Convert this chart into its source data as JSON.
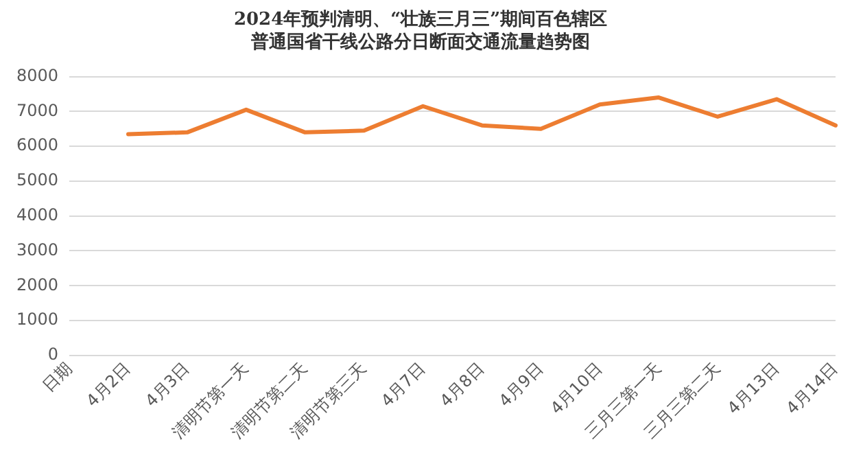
{
  "chart_data": {
    "type": "line",
    "title": [
      "2024年预判清明、“壮族三月三”期间百色辖区",
      "普通国省干线公路分日断面交通流量趋势图"
    ],
    "categories": [
      "日期",
      "4月2日",
      "4月3日",
      "清明节第一天",
      "清明节第二天",
      "清明节第三天",
      "4月7日",
      "4月8日",
      "4月9日",
      "4月10日",
      "三月三第一天",
      "三月三第二天",
      "4月13日",
      "4月14日"
    ],
    "series": [
      {
        "color": "#ed7d31",
        "values": [
          null,
          6350,
          6400,
          7050,
          6400,
          6450,
          7150,
          6600,
          6500,
          7200,
          7400,
          6850,
          7350,
          6600
        ]
      }
    ],
    "ylim": [
      0,
      8000
    ],
    "yticks": [
      0,
      1000,
      2000,
      3000,
      4000,
      5000,
      6000,
      7000,
      8000
    ],
    "grid": "y",
    "legend": false,
    "marker": "none"
  }
}
